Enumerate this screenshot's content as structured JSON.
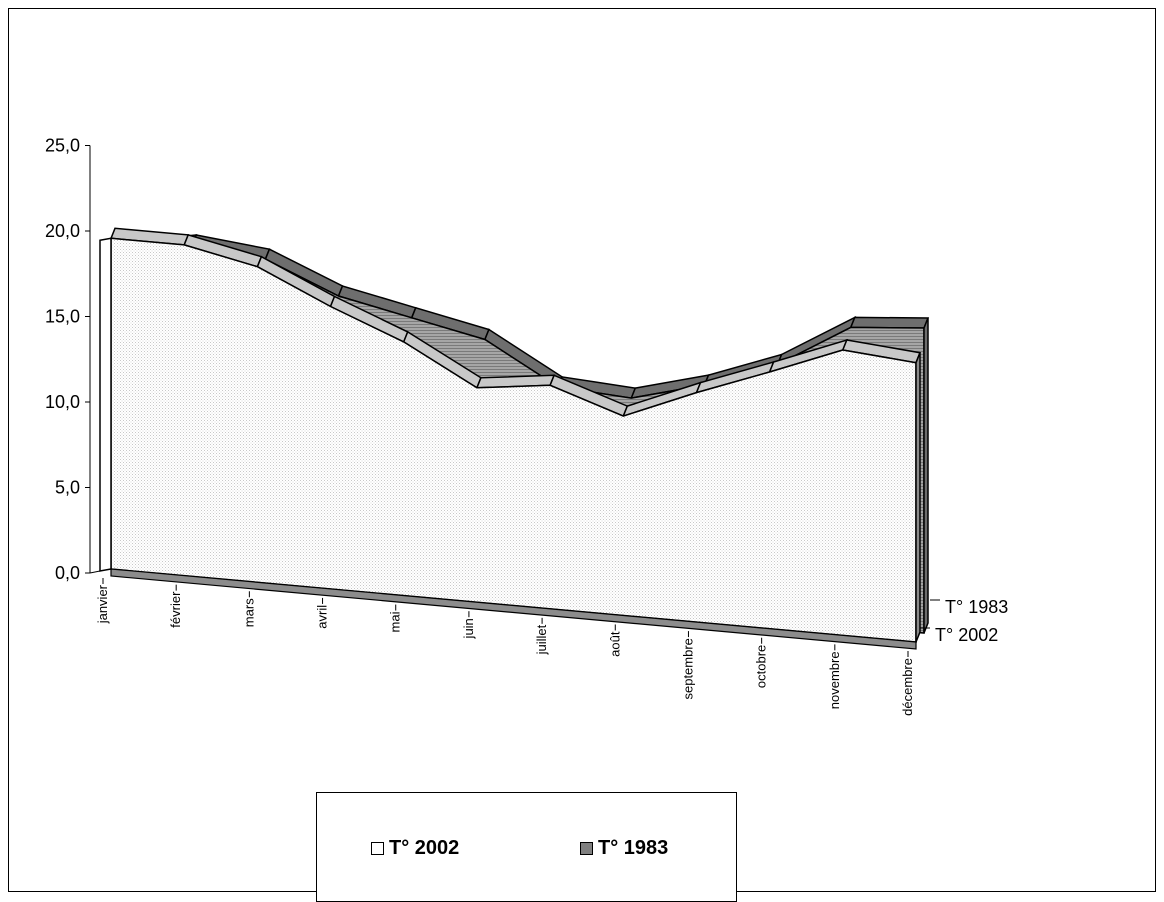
{
  "chart_data": {
    "type": "area",
    "subtype": "3d-area",
    "categories": [
      "janvier",
      "février",
      "mars",
      "avril",
      "mai",
      "juin",
      "juillet",
      "août",
      "septembre",
      "octobre",
      "novembre",
      "décembre"
    ],
    "series": [
      {
        "name": "T° 2002",
        "values": [
          21.9,
          21.9,
          20.9,
          18.7,
          16.8,
          14.2,
          14.8,
          13.2,
          15.2,
          17.0,
          18.9,
          18.5
        ],
        "color": "#f2f2f2"
      },
      {
        "name": "T° 1983",
        "values": [
          20.4,
          21.3,
          20.8,
          18.8,
          17.8,
          16.8,
          14.1,
          13.8,
          15.1,
          16.9,
          19.8,
          20.2
        ],
        "color": "#8c8c8c"
      }
    ],
    "y_ticks": [
      "0,0",
      "5,0",
      "10,0",
      "15,0",
      "20,0",
      "25,0"
    ],
    "ylim": [
      0,
      25
    ],
    "depth_labels": [
      "T° 1983",
      "T° 2002"
    ],
    "legend_position": "bottom",
    "grid": false
  },
  "legend": {
    "items": [
      {
        "label": "T° 2002",
        "color": "#ffffff"
      },
      {
        "label": "T° 1983",
        "color": "#808080"
      }
    ]
  }
}
